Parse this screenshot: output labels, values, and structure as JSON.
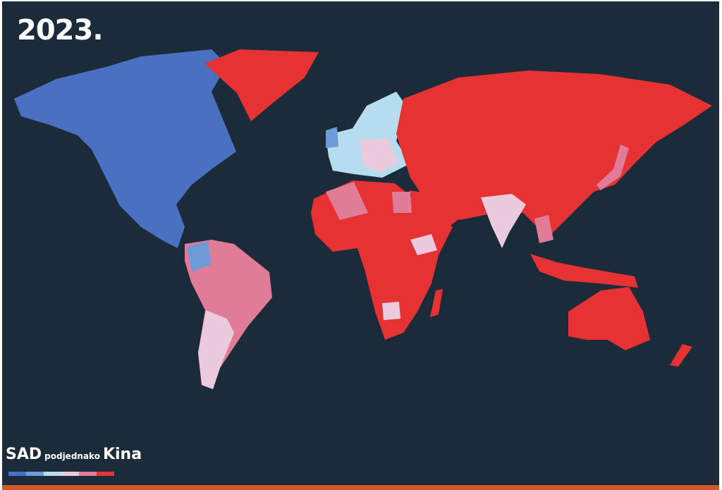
{
  "title": "2023.",
  "legend": {
    "left_label": "SAD",
    "middle_label": "podjednako",
    "right_label": "Kina",
    "colors": [
      "#4a70c2",
      "#6e9ad6",
      "#b6dcf0",
      "#eccadd",
      "#e07b98",
      "#e63232"
    ]
  },
  "colors": {
    "background": "#1b2b3a",
    "usa_strong": "#4a70c2",
    "china_strong": "#e63232",
    "accent_bar": "#d4572c"
  }
}
